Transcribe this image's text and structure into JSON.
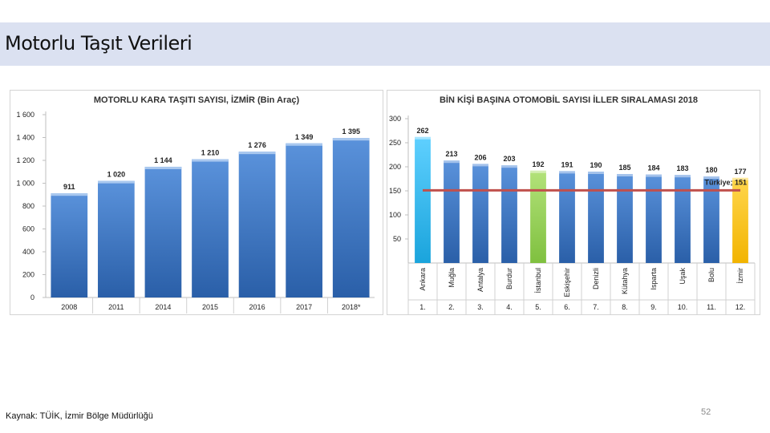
{
  "slide": {
    "title": "Motorlu Taşıt Verileri",
    "source": "Kaynak: TÜİK, İzmir Bölge Müdürlüğü",
    "page_number": "52"
  },
  "colors": {
    "title_band": "#dbe1f1",
    "bar_blue": "#3f78c6",
    "bar_cyan": "#22b5ec",
    "bar_green": "#92d050",
    "bar_yellow": "#ffc000",
    "reference_line": "#c0504d"
  },
  "chart_data": [
    {
      "type": "bar",
      "title": "MOTORLU KARA TAŞITI SAYISI, İZMİR (Bin Araç)",
      "categories": [
        "2008",
        "2011",
        "2014",
        "2015",
        "2016",
        "2017",
        "2018*"
      ],
      "values": [
        911,
        1020,
        1144,
        1210,
        1276,
        1349,
        1395
      ],
      "value_labels": [
        "911",
        "1 020",
        "1 144",
        "1 210",
        "1 276",
        "1 349",
        "1 395"
      ],
      "ylim": [
        0,
        1600
      ],
      "yticks": [
        0,
        200,
        400,
        600,
        800,
        1000,
        1200,
        1400,
        1600
      ],
      "ytick_labels": [
        "0",
        "200",
        "400",
        "600",
        "800",
        "1 000",
        "1 200",
        "1 400",
        "1 600"
      ],
      "grid": false,
      "legend": "none"
    },
    {
      "type": "bar",
      "title": "BİN KİŞİ BAŞINA OTOMOBİL SAYISI İLLER SIRALAMASI 2018",
      "categories": [
        "Ankara",
        "Muğla",
        "Antalya",
        "Burdur",
        "İstanbul",
        "Eskişehir",
        "Denizli",
        "Kütahya",
        "Isparta",
        "Uşak",
        "Bolu",
        "İzmir"
      ],
      "ranks": [
        "1.",
        "2.",
        "3.",
        "4.",
        "5.",
        "6.",
        "7.",
        "8.",
        "9.",
        "10.",
        "11.",
        "12."
      ],
      "values": [
        262,
        213,
        206,
        203,
        192,
        191,
        190,
        185,
        184,
        183,
        180,
        177
      ],
      "highlight": {
        "Ankara": "cyan",
        "İstanbul": "green",
        "İzmir": "yellow"
      },
      "reference": {
        "label": "Türkiye; 151",
        "value": 151
      },
      "ylim": [
        0,
        300
      ],
      "yticks": [
        50,
        100,
        150,
        200,
        250,
        300
      ],
      "grid": false,
      "legend": "none"
    }
  ]
}
